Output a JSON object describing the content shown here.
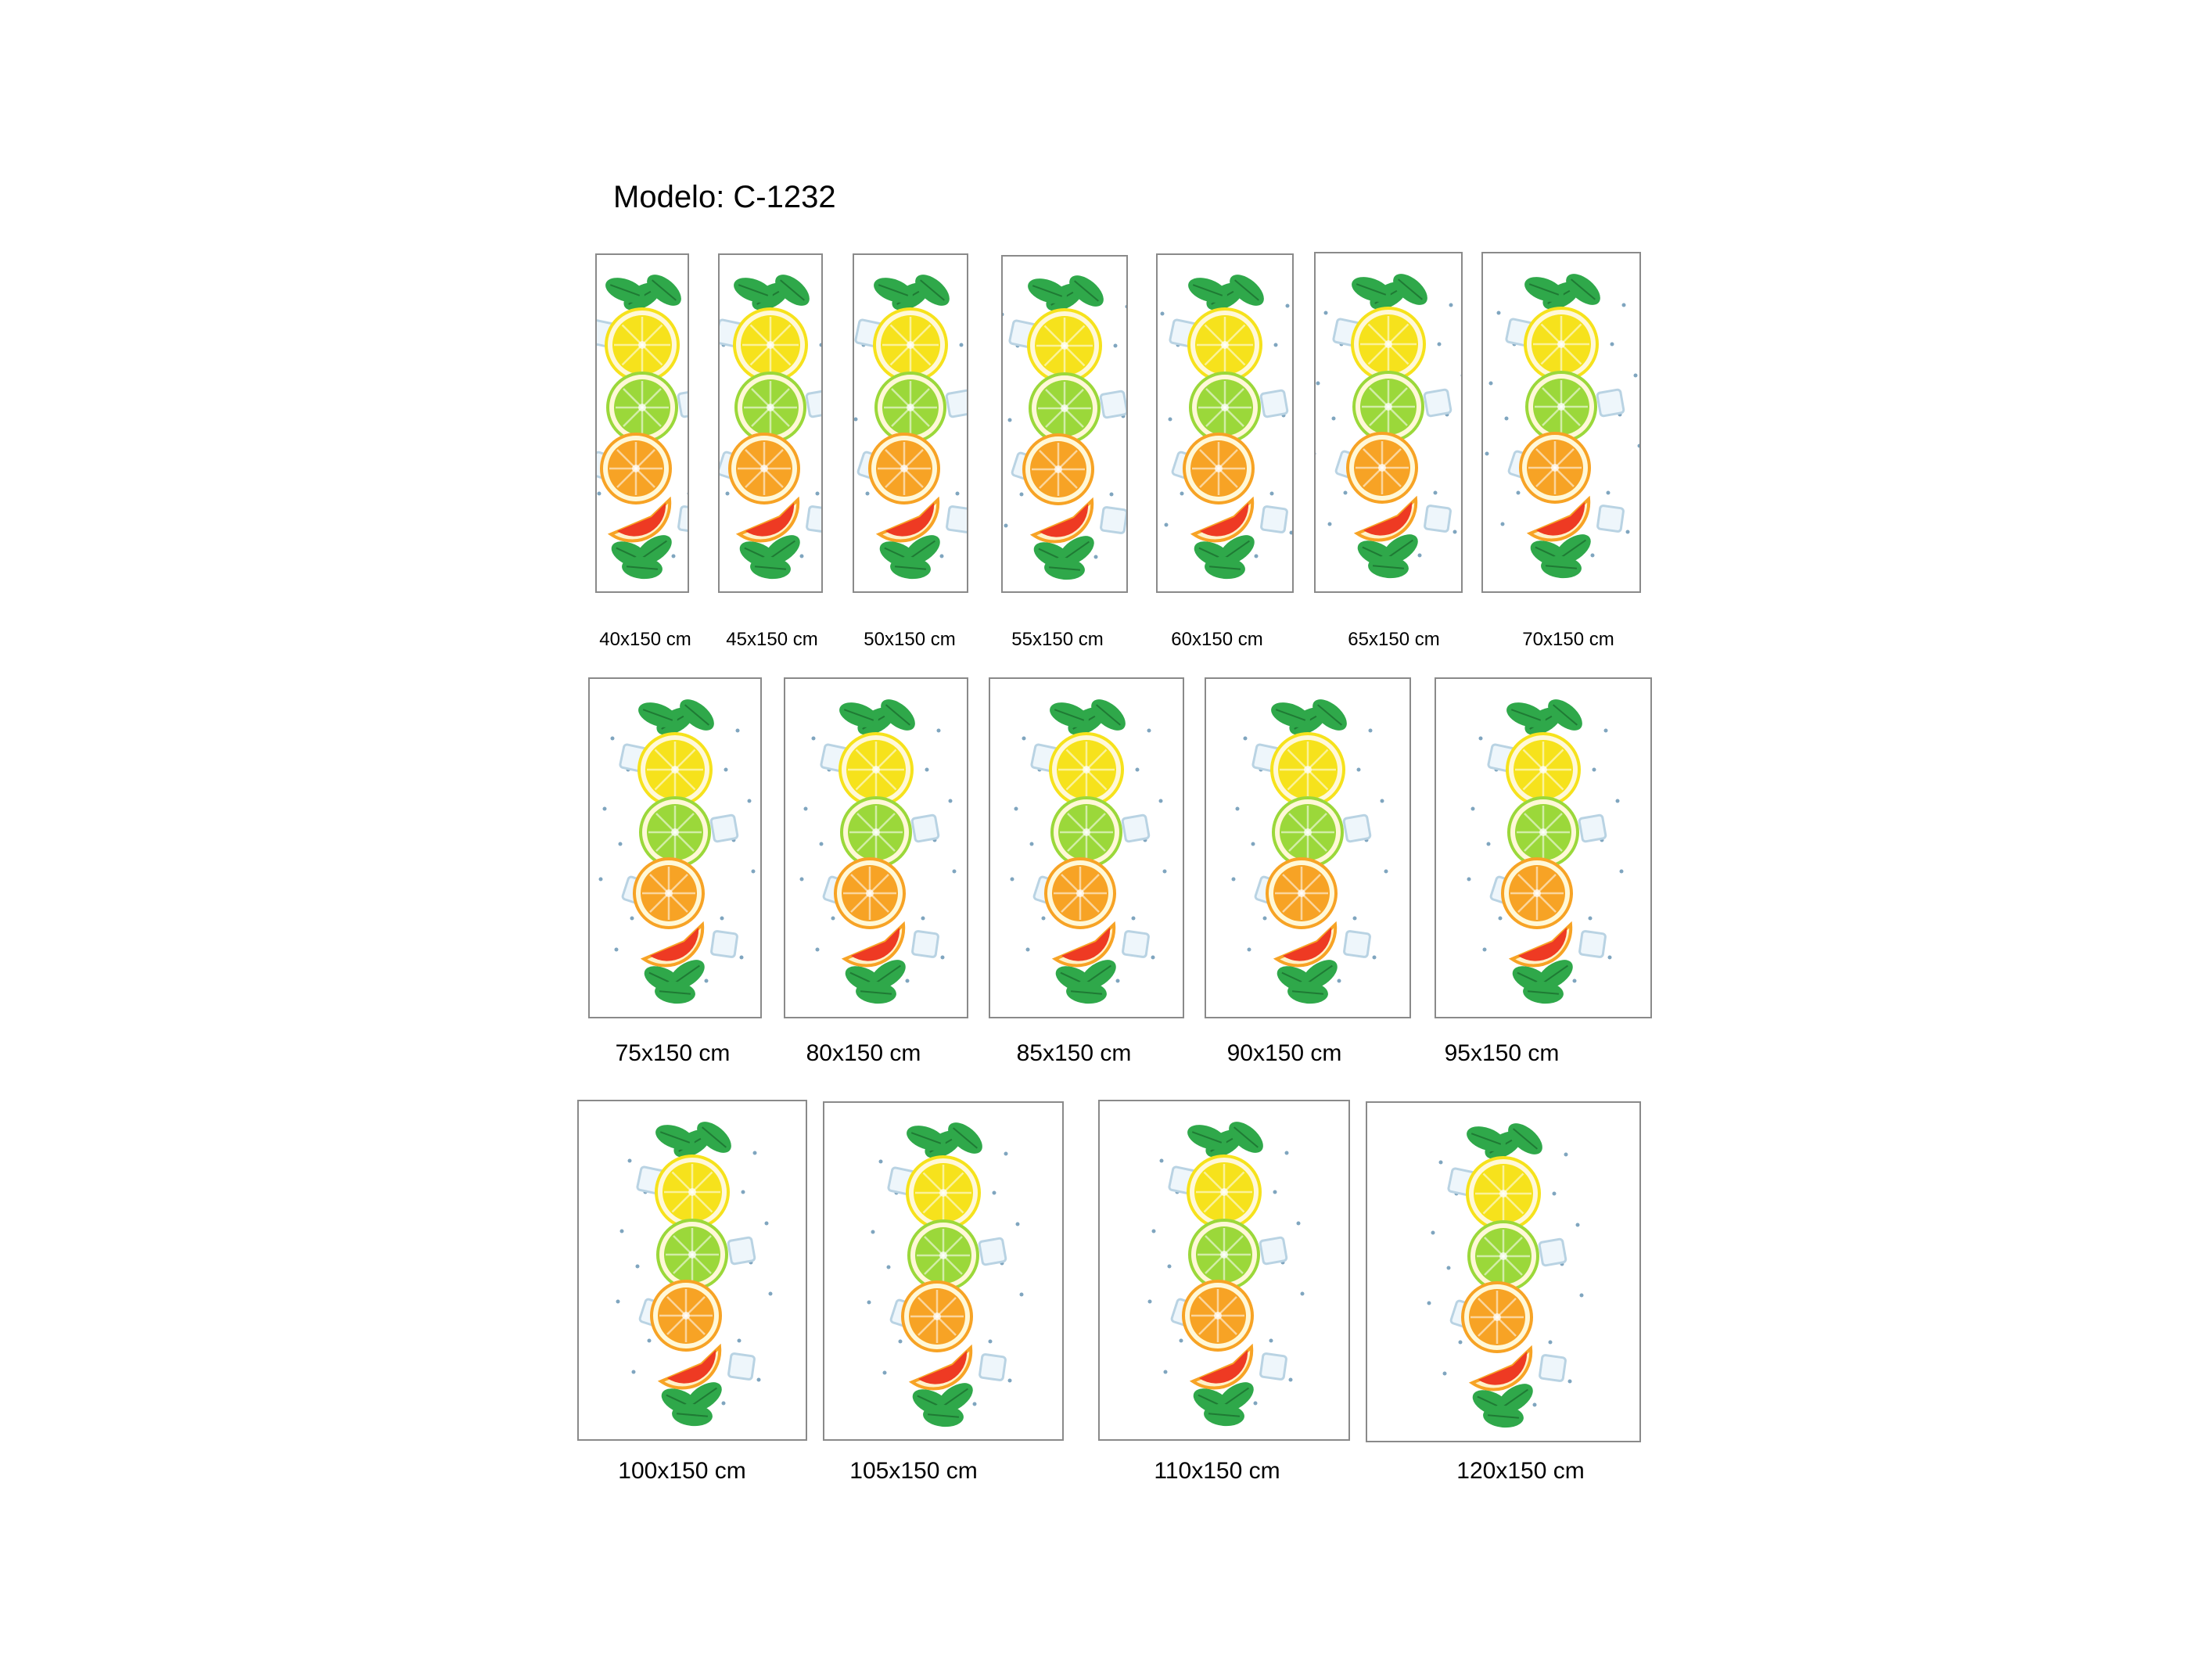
{
  "title": "Modelo: C-1232",
  "panel_image": {
    "icon": "citrus-slices-with-mint-and-ice-icon",
    "colors": {
      "lemon": "#f6e21c",
      "lime": "#9bd83a",
      "orange": "#f7a325",
      "grapefruit": "#ee3a23",
      "mint": "#2fa84a",
      "ice": "#b9d3e3",
      "frame": "#8a8a8a"
    }
  },
  "rows": [
    {
      "sizes": [
        "40x150 cm",
        "45x150 cm",
        "50x150 cm",
        "55x150 cm",
        "60x150 cm",
        "65x150 cm",
        "70x150 cm"
      ]
    },
    {
      "sizes": [
        "75x150 cm",
        "80x150 cm",
        "85x150 cm",
        "90x150 cm",
        "95x150 cm"
      ]
    },
    {
      "sizes": [
        "100x150 cm",
        "105x150 cm",
        "110x150 cm",
        "120x150 cm"
      ]
    }
  ]
}
